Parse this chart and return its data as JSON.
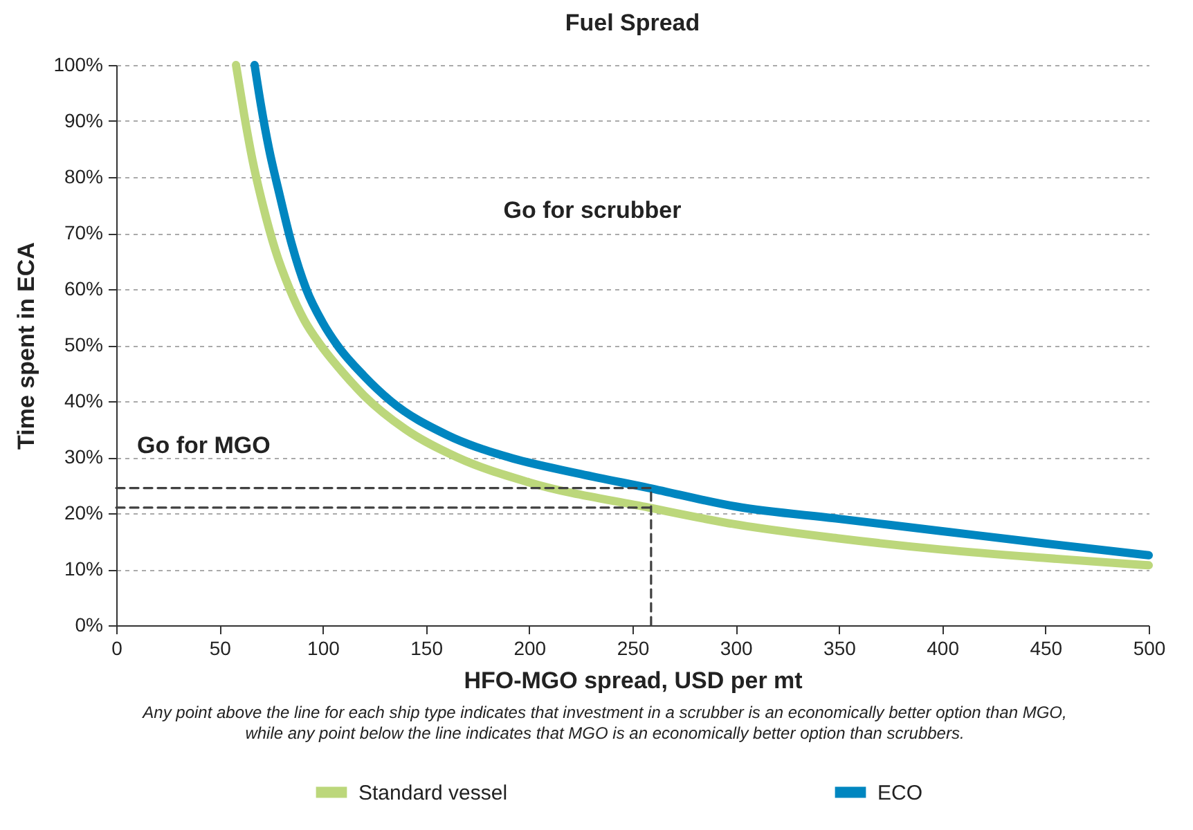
{
  "chart_data": {
    "type": "line",
    "title": "Fuel Spread",
    "xlabel": "HFO-MGO spread, USD per mt",
    "ylabel": "Time spent in ECA",
    "xlim": [
      0,
      500
    ],
    "xticks": [
      0,
      50,
      100,
      150,
      200,
      250,
      300,
      350,
      400,
      450,
      500
    ],
    "ylim": [
      0,
      1
    ],
    "yticks": [
      {
        "value": 0,
        "label": "0%"
      },
      {
        "value": 0.1,
        "label": "10%"
      },
      {
        "value": 0.2,
        "label": "20%"
      },
      {
        "value": 0.3,
        "label": "30%"
      },
      {
        "value": 0.4,
        "label": "40%"
      },
      {
        "value": 0.5,
        "label": "50%"
      },
      {
        "value": 0.6,
        "label": "60%"
      },
      {
        "value": 0.7,
        "label": "70%"
      },
      {
        "value": 0.8,
        "label": "80%"
      },
      {
        "value": 0.9,
        "label": "90%"
      },
      {
        "value": 1,
        "label": "100%"
      }
    ],
    "grid": "y",
    "legend": "bottom",
    "line_style": "solid",
    "series": [
      {
        "name": "Standard vessel",
        "color": "#bcd77b",
        "x": [
          58,
          62,
          66,
          71,
          77,
          84,
          91,
          99,
          110,
          120,
          140,
          165,
          200,
          258,
          300,
          350,
          400,
          450,
          500
        ],
        "values": [
          1.0,
          0.91,
          0.83,
          0.75,
          0.67,
          0.6,
          0.545,
          0.5,
          0.45,
          0.41,
          0.35,
          0.3,
          0.255,
          0.21,
          0.18,
          0.155,
          0.135,
          0.12,
          0.107
        ]
      },
      {
        "name": "ECO",
        "color": "#0086c0",
        "x": [
          67,
          70,
          74,
          79,
          85,
          92,
          100,
          107,
          120,
          133,
          160,
          190,
          225,
          258,
          300,
          350,
          400,
          450,
          500
        ],
        "values": [
          1.0,
          0.93,
          0.85,
          0.77,
          0.68,
          0.6,
          0.54,
          0.5,
          0.445,
          0.4,
          0.34,
          0.3,
          0.27,
          0.245,
          0.212,
          0.19,
          0.168,
          0.146,
          0.125
        ]
      },
      {
        "color": "#404040",
        "line_style": "dashed",
        "x": [
          0,
          259
        ],
        "values": [
          0.245,
          0.245
        ]
      },
      {
        "color": "#404040",
        "line_style": "dashed",
        "x": [
          0,
          259
        ],
        "values": [
          0.21,
          0.21
        ]
      },
      {
        "color": "#404040",
        "line_style": "dashed",
        "x": [
          259,
          259
        ],
        "values": [
          0,
          0.245
        ]
      }
    ],
    "annotations": [
      "Go for scrubber",
      "Go for MGO",
      "Any point above the line for each ship type indicates that investment in a scrubber is an economically better option than MGO, while any point below the line indicates that MGO is an economically better option than scrubbers."
    ]
  }
}
